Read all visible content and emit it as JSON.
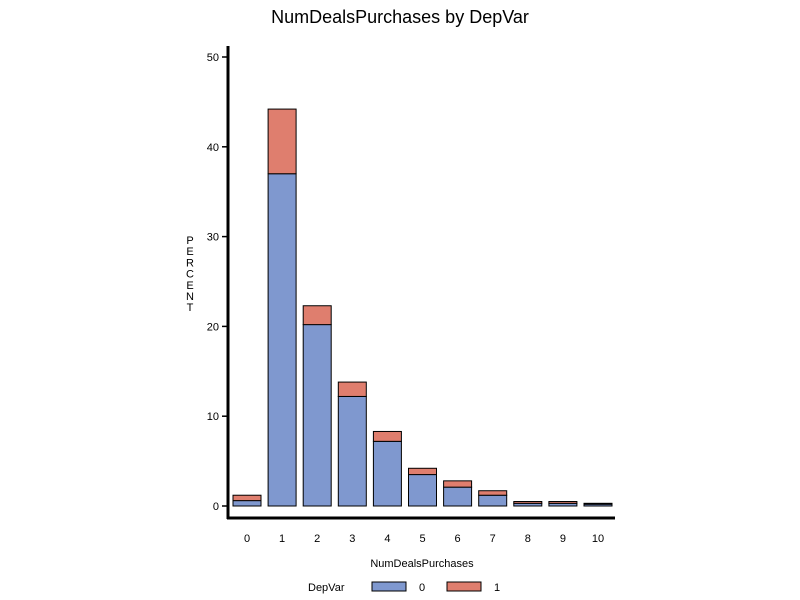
{
  "chart_data": {
    "type": "bar",
    "stacked": true,
    "title": "NumDealsPurchases  by  DepVar",
    "xlabel": "NumDealsPurchases",
    "ylabel": "PERCENT",
    "ylim": [
      0,
      50
    ],
    "yticks": [
      0,
      10,
      20,
      30,
      40,
      50
    ],
    "categories": [
      "0",
      "1",
      "2",
      "3",
      "4",
      "5",
      "6",
      "7",
      "8",
      "9",
      "10"
    ],
    "series": [
      {
        "name": "0",
        "color": "#7f98cf",
        "values": [
          0.6,
          37.0,
          20.2,
          12.2,
          7.2,
          3.5,
          2.1,
          1.2,
          0.3,
          0.3,
          0.2
        ]
      },
      {
        "name": "1",
        "color": "#df7e6e",
        "values": [
          0.6,
          7.2,
          2.1,
          1.6,
          1.1,
          0.7,
          0.7,
          0.5,
          0.2,
          0.2,
          0.1
        ]
      }
    ],
    "legend": {
      "title": "DepVar",
      "position": "bottom"
    }
  }
}
